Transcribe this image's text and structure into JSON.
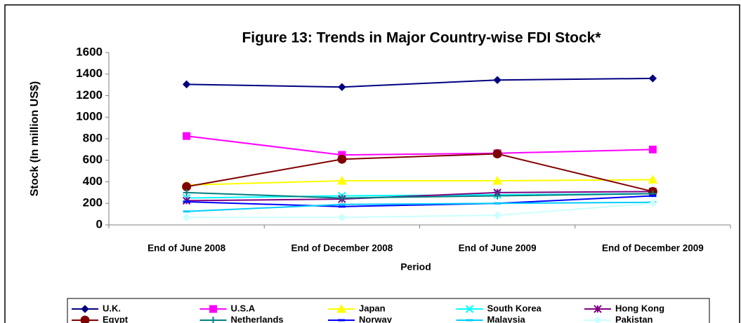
{
  "chart_data": {
    "type": "line",
    "title": "Figure 13: Trends in Major Country-wise FDI Stock*",
    "x_label": "Period",
    "y_label": "Stock (In million US$)",
    "categories": [
      "End of June 2008",
      "End of December 2008",
      "End of June 2009",
      "End of December 2009"
    ],
    "ylim": [
      0,
      1600
    ],
    "yticks": [
      0,
      200,
      400,
      600,
      800,
      1000,
      1200,
      1400,
      1600
    ],
    "grid": false,
    "legend": "bottom",
    "series": [
      {
        "name": "U.K.",
        "color": "#000080",
        "marker": "diamond",
        "values": [
          1305,
          1280,
          1345,
          1360
        ]
      },
      {
        "name": "U.S.A",
        "color": "#ff00ff",
        "marker": "square",
        "values": [
          825,
          650,
          665,
          700
        ]
      },
      {
        "name": "Japan",
        "color": "#ffff00",
        "marker": "triangle",
        "values": [
          370,
          410,
          410,
          420
        ]
      },
      {
        "name": "South Korea",
        "color": "#00ffff",
        "marker": "x",
        "values": [
          250,
          270,
          280,
          290
        ]
      },
      {
        "name": "Hong Kong",
        "color": "#800080",
        "marker": "star",
        "values": [
          225,
          240,
          300,
          310
        ]
      },
      {
        "name": "Egypt",
        "color": "#800000",
        "marker": "circle",
        "values": [
          355,
          610,
          660,
          310
        ]
      },
      {
        "name": "Netherlands",
        "color": "#008080",
        "marker": "plus",
        "values": [
          300,
          250,
          270,
          290
        ]
      },
      {
        "name": "Norway",
        "color": "#0000ff",
        "marker": "dash",
        "values": [
          215,
          170,
          200,
          270
        ]
      },
      {
        "name": "Malaysia",
        "color": "#00ccff",
        "marker": "dash",
        "values": [
          125,
          190,
          200,
          210
        ]
      },
      {
        "name": "Pakistan",
        "color": "#ccffff",
        "marker": "diamond",
        "values": [
          70,
          70,
          90,
          200
        ]
      }
    ]
  }
}
